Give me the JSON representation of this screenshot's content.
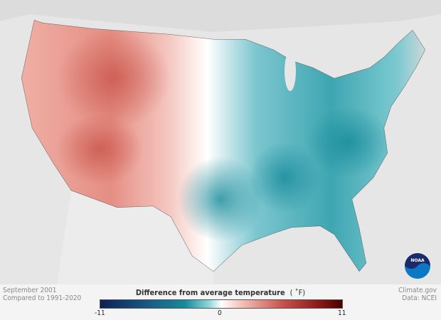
{
  "caption": {
    "date": "September 2001",
    "baseline": "Compared to 1991-2020"
  },
  "credit": {
    "source": "Climate.gov",
    "data": "Data: NCEI"
  },
  "legend": {
    "title": "Difference from average temperature",
    "unit": "( ˚F)",
    "min": "-11",
    "mid": "0",
    "max": "11"
  },
  "logo": {
    "text": "NOAA"
  },
  "colors": {
    "warm": "#c9554c",
    "cool": "#178b9a",
    "neutral": "#ffffff"
  }
}
